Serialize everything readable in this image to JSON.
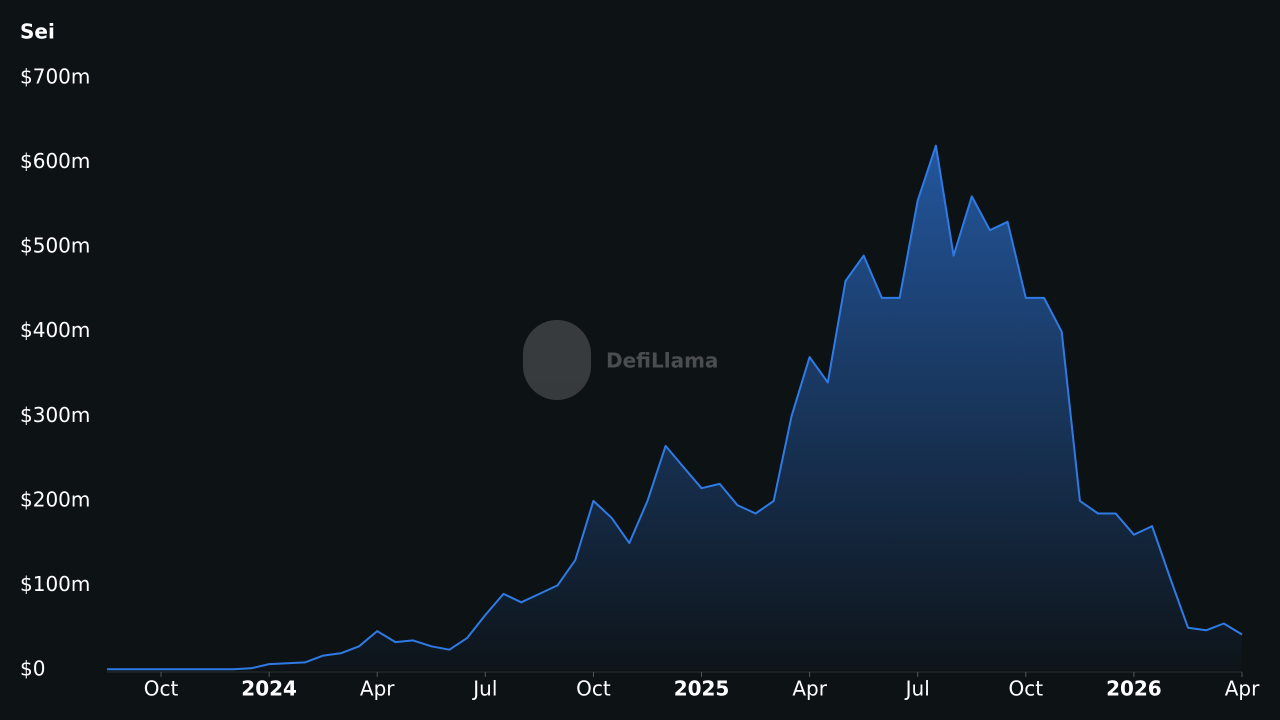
{
  "chart_data": {
    "type": "area",
    "title": "Sei",
    "watermark": "DefiLlama",
    "color": "#2f7be6",
    "x": [
      2023.625,
      2023.667,
      2023.708,
      2023.75,
      2023.792,
      2023.833,
      2023.875,
      2023.917,
      2023.958,
      2024.0,
      2024.042,
      2024.083,
      2024.125,
      2024.167,
      2024.208,
      2024.25,
      2024.292,
      2024.333,
      2024.375,
      2024.417,
      2024.458,
      2024.5,
      2024.542,
      2024.583,
      2024.625,
      2024.667,
      2024.708,
      2024.75,
      2024.792,
      2024.833,
      2024.875,
      2024.917,
      2024.958,
      2025.0,
      2025.042,
      2025.083,
      2025.125,
      2025.167,
      2025.208,
      2025.25,
      2025.292,
      2025.333,
      2025.375,
      2025.417,
      2025.458,
      2025.5,
      2025.542,
      2025.583,
      2025.625,
      2025.667,
      2025.708,
      2025.75,
      2025.792,
      2025.833,
      2025.875,
      2025.917,
      2025.958,
      2026.0,
      2026.042,
      2026.083,
      2026.125,
      2026.167,
      2026.208,
      2026.25
    ],
    "values": [
      1,
      1,
      1,
      1,
      1,
      1,
      1,
      1,
      2,
      7,
      8,
      9,
      17,
      20,
      28,
      46,
      33,
      35,
      28,
      24,
      38,
      65,
      90,
      80,
      90,
      100,
      130,
      200,
      180,
      150,
      200,
      265,
      240,
      215,
      220,
      195,
      185,
      200,
      300,
      370,
      340,
      460,
      490,
      440,
      440,
      555,
      620,
      490,
      560,
      520,
      530,
      440,
      440,
      400,
      200,
      185,
      185,
      160,
      170,
      110,
      50,
      47,
      55,
      42
    ],
    "xlim": [
      2023.625,
      2026.25
    ],
    "xticks": [
      {
        "value": 2023.75,
        "label": "Oct"
      },
      2024,
      {
        "value": 2024.25,
        "label": "Apr"
      },
      {
        "value": 2024.5,
        "label": "Jul"
      },
      {
        "value": 2024.75,
        "label": "Oct"
      },
      2025,
      {
        "value": 2025.25,
        "label": "Apr"
      },
      {
        "value": 2025.5,
        "label": "Jul"
      },
      {
        "value": 2025.75,
        "label": "Oct"
      },
      2026,
      {
        "value": 2026.25,
        "label": "Apr"
      }
    ],
    "ylim": [
      0,
      700
    ],
    "yticks": [
      {
        "value": 0,
        "label": "$0"
      },
      {
        "value": 100,
        "label": "$100m"
      },
      {
        "value": 200,
        "label": "$200m"
      },
      {
        "value": 300,
        "label": "$300m"
      },
      {
        "value": 400,
        "label": "$400m"
      },
      {
        "value": 500,
        "label": "$500m"
      },
      {
        "value": 600,
        "label": "$600m"
      },
      {
        "value": 700,
        "label": "$700m"
      }
    ]
  }
}
